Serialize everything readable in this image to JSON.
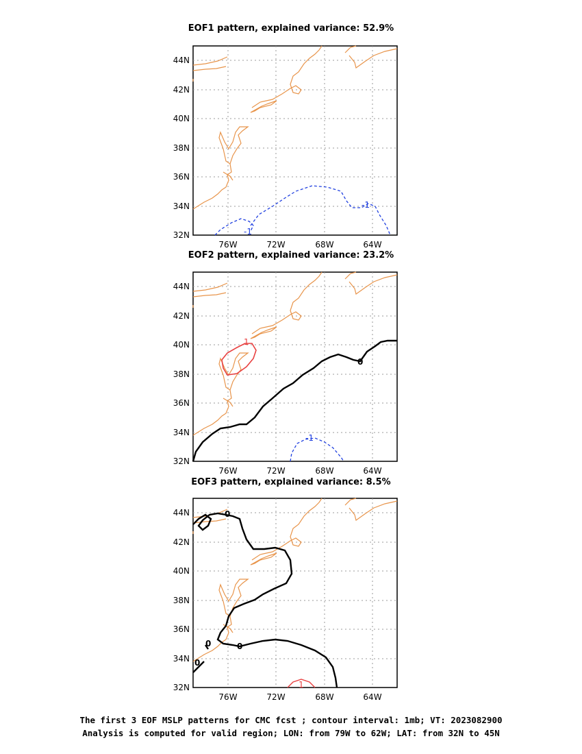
{
  "chart_data": [
    {
      "type": "contour-map",
      "title": "EOF1 pattern, explained variance: 52.9%",
      "lat_ticks": [
        "44N",
        "42N",
        "40N",
        "38N",
        "36N",
        "34N",
        "32N"
      ],
      "lon_ticks": [
        "76W",
        "72W",
        "68W",
        "64W"
      ],
      "xlim": [
        -79,
        -62
      ],
      "ylim": [
        32,
        45
      ],
      "grid": true,
      "contour_labels": [
        "-1",
        "-1"
      ]
    },
    {
      "type": "contour-map",
      "title": "EOF2 pattern, explained variance: 23.2%",
      "lat_ticks": [
        "44N",
        "42N",
        "40N",
        "38N",
        "36N",
        "34N",
        "32N"
      ],
      "lon_ticks": [
        "76W",
        "72W",
        "68W",
        "64W"
      ],
      "xlim": [
        -79,
        -62
      ],
      "ylim": [
        32,
        45
      ],
      "grid": true,
      "contour_labels": [
        "1",
        "0",
        "-1"
      ]
    },
    {
      "type": "contour-map",
      "title": "EOF3 pattern, explained variance: 8.5%",
      "lat_ticks": [
        "44N",
        "42N",
        "40N",
        "38N",
        "36N",
        "34N",
        "32N"
      ],
      "lon_ticks": [
        "76W",
        "72W",
        "68W",
        "64W"
      ],
      "xlim": [
        -79,
        -62
      ],
      "ylim": [
        32,
        45
      ],
      "grid": true,
      "contour_labels": [
        "0",
        "0",
        "0",
        "0",
        "0",
        "1"
      ]
    }
  ],
  "caption": {
    "line1": "The first 3 EOF MSLP patterns for CMC fcst ; contour interval: 1mb; VT: 2023082900",
    "line2": "Analysis is computed for valid region; LON: from 79W to 62W; LAT: from 32N to 45N"
  },
  "colors": {
    "coast": "#e8944a",
    "negative": "#2040e0",
    "positive": "#e84040",
    "zero": "#000000",
    "grid": "#999999"
  }
}
